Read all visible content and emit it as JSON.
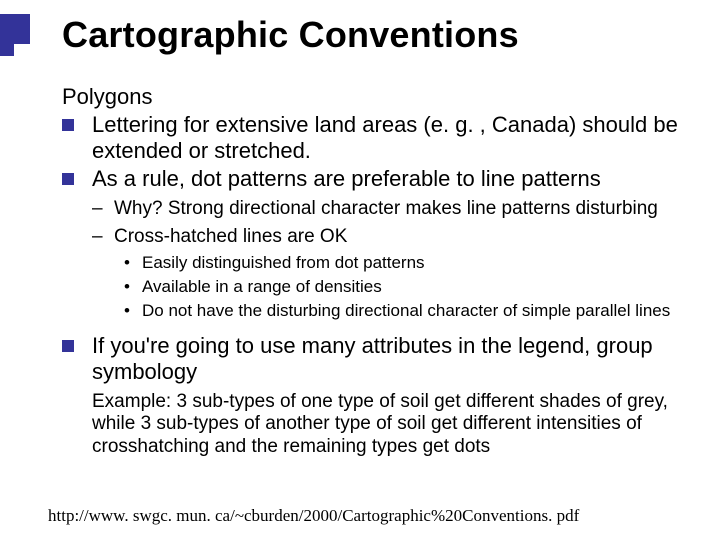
{
  "accent_color": "#333399",
  "title": "Cartographic Conventions",
  "subhead": "Polygons",
  "bullets": [
    {
      "text": "Lettering for extensive land areas (e. g. , Canada) should be extended or stretched."
    },
    {
      "text": "As a rule, dot patterns are preferable to line patterns",
      "sub": [
        {
          "text": "Why?  Strong directional character makes line patterns disturbing"
        },
        {
          "text": "Cross-hatched lines are OK",
          "sub": [
            "Easily distinguished from dot patterns",
            "Available in a range of densities",
            "Do not have the disturbing directional character of simple parallel lines"
          ]
        }
      ]
    },
    {
      "text": "If you're going to use many attributes in the legend, group symbology",
      "example": "Example:  3 sub-types of one type of soil get different shades of grey, while 3 sub-types of another type of soil get different intensities of crosshatching and the remaining types get dots"
    }
  ],
  "footer": "http://www. swgc. mun. ca/~cburden/2000/Cartographic%20Conventions. pdf"
}
